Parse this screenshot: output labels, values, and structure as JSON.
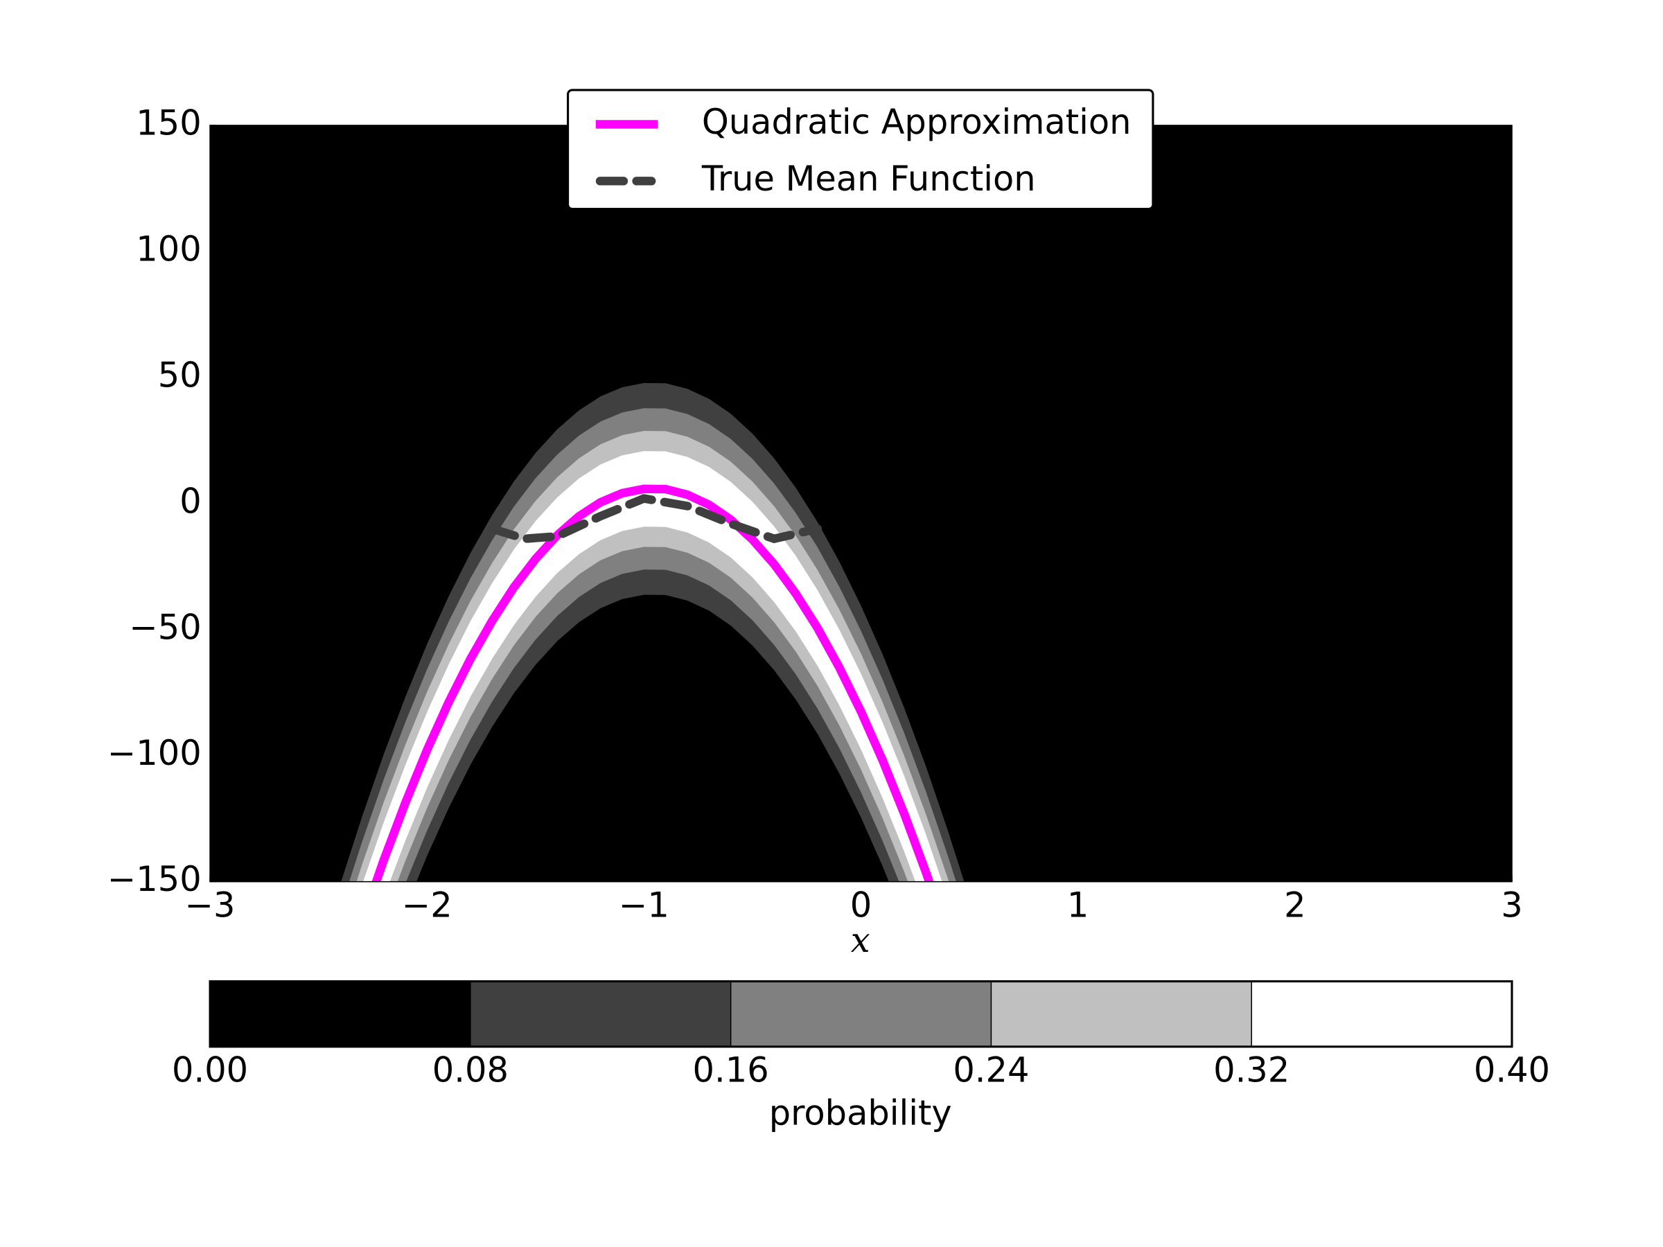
{
  "chart_data": {
    "type": "contour",
    "xlabel": "x",
    "xlim": [
      -3,
      3
    ],
    "xticks": [
      {
        "value": -3,
        "label": "−3"
      },
      {
        "value": -2,
        "label": "−2"
      },
      {
        "value": -1,
        "label": "−1"
      },
      0,
      1,
      2,
      3
    ],
    "ylim": [
      -150,
      150
    ],
    "yticks": [
      {
        "value": -150,
        "label": "−150"
      },
      {
        "value": -100,
        "label": "−100"
      },
      {
        "value": -50,
        "label": "−50"
      },
      0,
      50,
      100,
      150
    ],
    "legend": "upper center",
    "series": [
      {
        "name": "Quadratic Approximation",
        "color": "#ff00ff",
        "linestyle": "solid",
        "x": [
          -2.4,
          -2.3,
          -2.2,
          -2.1,
          -2.0,
          -1.9,
          -1.8,
          -1.7,
          -1.6,
          -1.5,
          -1.4,
          -1.3,
          -1.2,
          -1.1,
          -1.0,
          -0.9,
          -0.8,
          -0.7,
          -0.6,
          -0.5,
          -0.4,
          -0.3,
          -0.2,
          -0.1,
          0.0,
          0.1,
          0.2,
          0.3,
          0.4,
          0.5
        ],
        "values": [
          -193.1,
          -166.4,
          -141.6,
          -118.8,
          -97.8,
          -78.8,
          -61.7,
          -46.6,
          -33.3,
          -22.0,
          -12.6,
          -5.1,
          0.5,
          4.1,
          5.8,
          5.7,
          3.5,
          -0.5,
          -6.4,
          -14.3,
          -24.1,
          -35.8,
          -49.4,
          -65.0,
          -82.5,
          -101.9,
          -123.2,
          -146.4,
          -171.6,
          -198.6
        ]
      },
      {
        "name": "True Mean Function",
        "color": "#3f3f3f",
        "linestyle": "dashed",
        "x": [
          -1.7,
          -1.55,
          -1.4,
          -1.2,
          -1.0,
          -0.8,
          -0.6,
          -0.4,
          -0.2
        ],
        "values": [
          -10,
          -14,
          -13,
          -5,
          2,
          -1,
          -8,
          -14,
          -10
        ]
      }
    ],
    "contours": {
      "colors": [
        "#000000",
        "#404040",
        "#808080",
        "#c0c0c0",
        "#ffffff"
      ],
      "half_widths": [
        42,
        32,
        23,
        15
      ]
    },
    "colorbar": {
      "label": "probability",
      "ticks": [
        {
          "value": 0,
          "label": "0.00"
        },
        {
          "value": 0.08,
          "label": "0.08"
        },
        {
          "value": 0.16,
          "label": "0.16"
        },
        {
          "value": 0.24,
          "label": "0.24"
        },
        {
          "value": 0.32,
          "label": "0.32"
        },
        {
          "value": 0.4,
          "label": "0.40"
        }
      ]
    }
  }
}
